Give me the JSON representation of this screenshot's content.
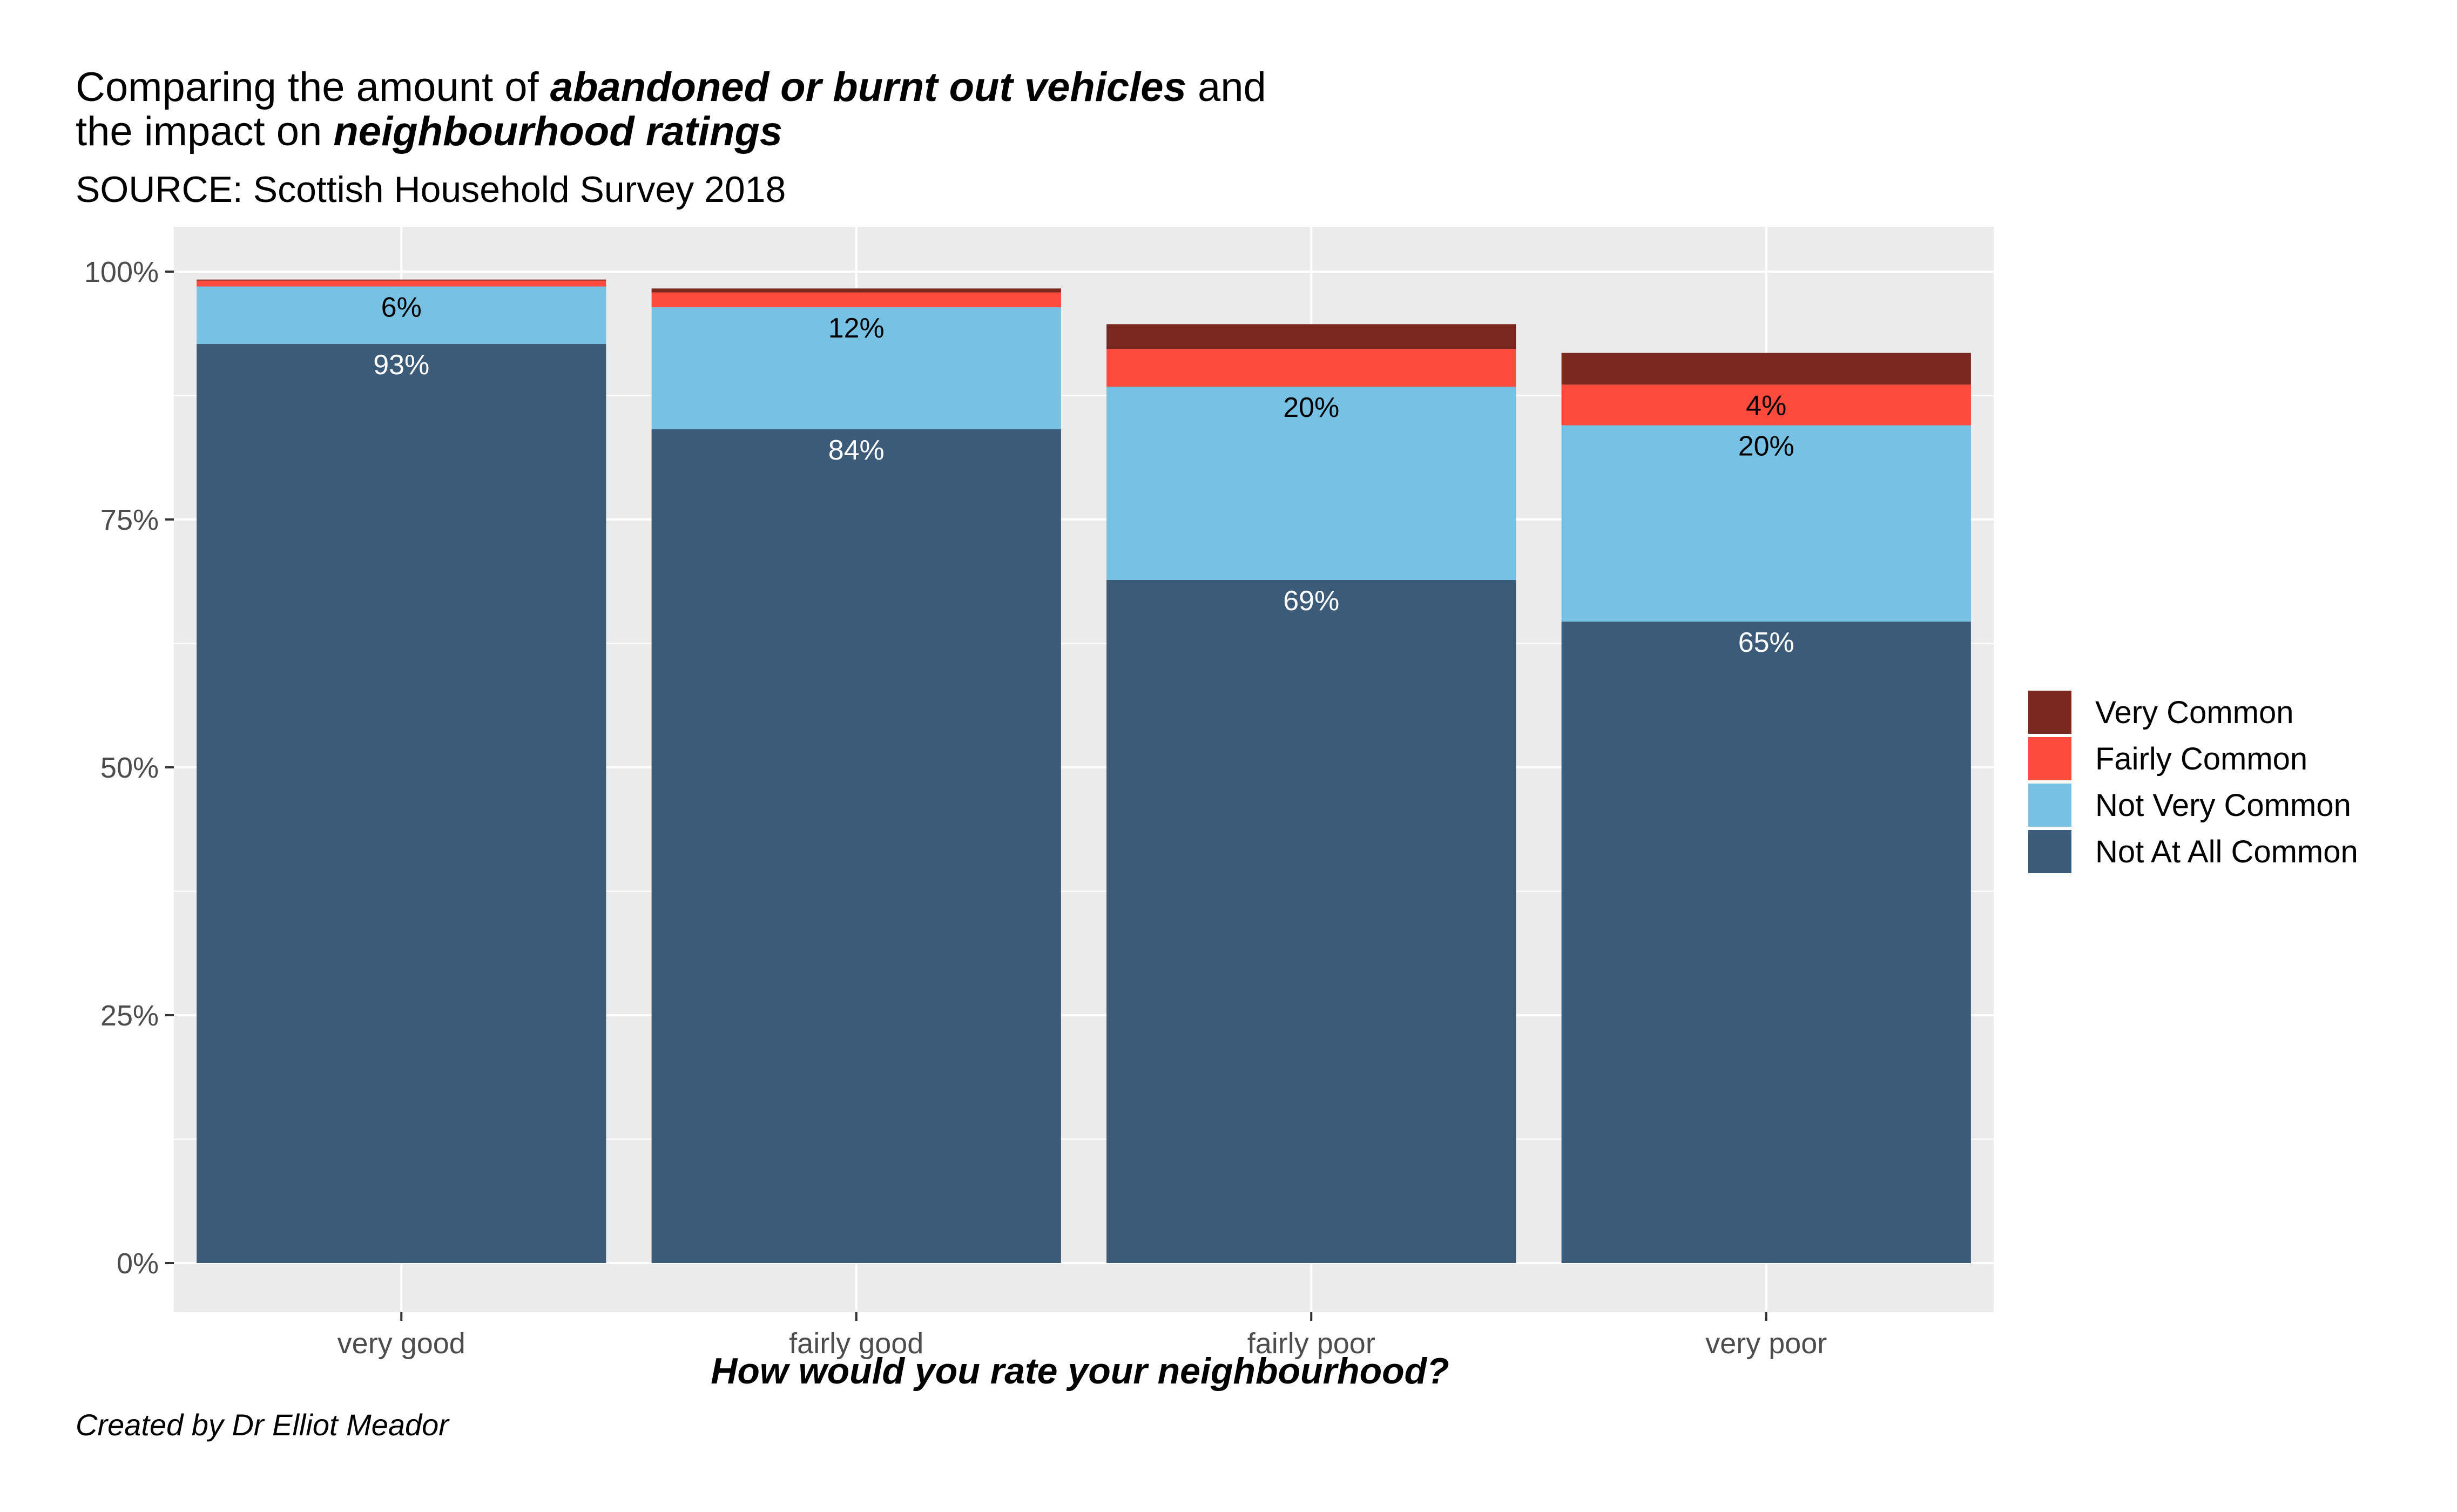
{
  "title": {
    "line1_pre": "Comparing the amount of ",
    "line1_emph": "abandoned or burnt out vehicles",
    "line1_post": " and",
    "line2_pre": "the impact on ",
    "line2_emph": "neighbourhood ratings"
  },
  "subtitle": "SOURCE: Scottish Household Survey 2018",
  "caption": "Created by Dr Elliot Meador",
  "chart_data": {
    "type": "bar",
    "stacked": true,
    "categories": [
      "very good",
      "fairly good",
      "fairly poor",
      "very poor"
    ],
    "xlabel": "How would you rate your neighbourhood?",
    "ylabel": "",
    "ylim": [
      0,
      100
    ],
    "y_ticks": [
      0,
      25,
      50,
      75,
      100
    ],
    "y_tick_labels": [
      "0%",
      "25%",
      "50%",
      "75%",
      "100%"
    ],
    "grid": true,
    "legend_position": "right",
    "series": [
      {
        "name": "Not At All Common",
        "color": "#3B5B78",
        "label_color": "#ffffff",
        "values": [
          92.7,
          84.1,
          68.9,
          64.7
        ],
        "labels": [
          "93%",
          "84%",
          "69%",
          "65%"
        ]
      },
      {
        "name": "Not Very Common",
        "color": "#77C1E4",
        "label_color": "#000000",
        "values": [
          5.8,
          12.3,
          19.5,
          19.8
        ],
        "labels": [
          "6%",
          "12%",
          "20%",
          "20%"
        ]
      },
      {
        "name": "Fairly Common",
        "color": "#FC4B3C",
        "label_color": "#000000",
        "values": [
          0.6,
          1.5,
          3.8,
          4.1
        ],
        "labels": [
          "",
          "",
          "",
          "4%"
        ]
      },
      {
        "name": "Very Common",
        "color": "#7A2820",
        "label_color": "#000000",
        "values": [
          0.1,
          0.4,
          2.5,
          3.2
        ],
        "labels": [
          "",
          "",
          "",
          ""
        ]
      }
    ],
    "legend_order": [
      "Very Common",
      "Fairly Common",
      "Not Very Common",
      "Not At All Common"
    ]
  }
}
